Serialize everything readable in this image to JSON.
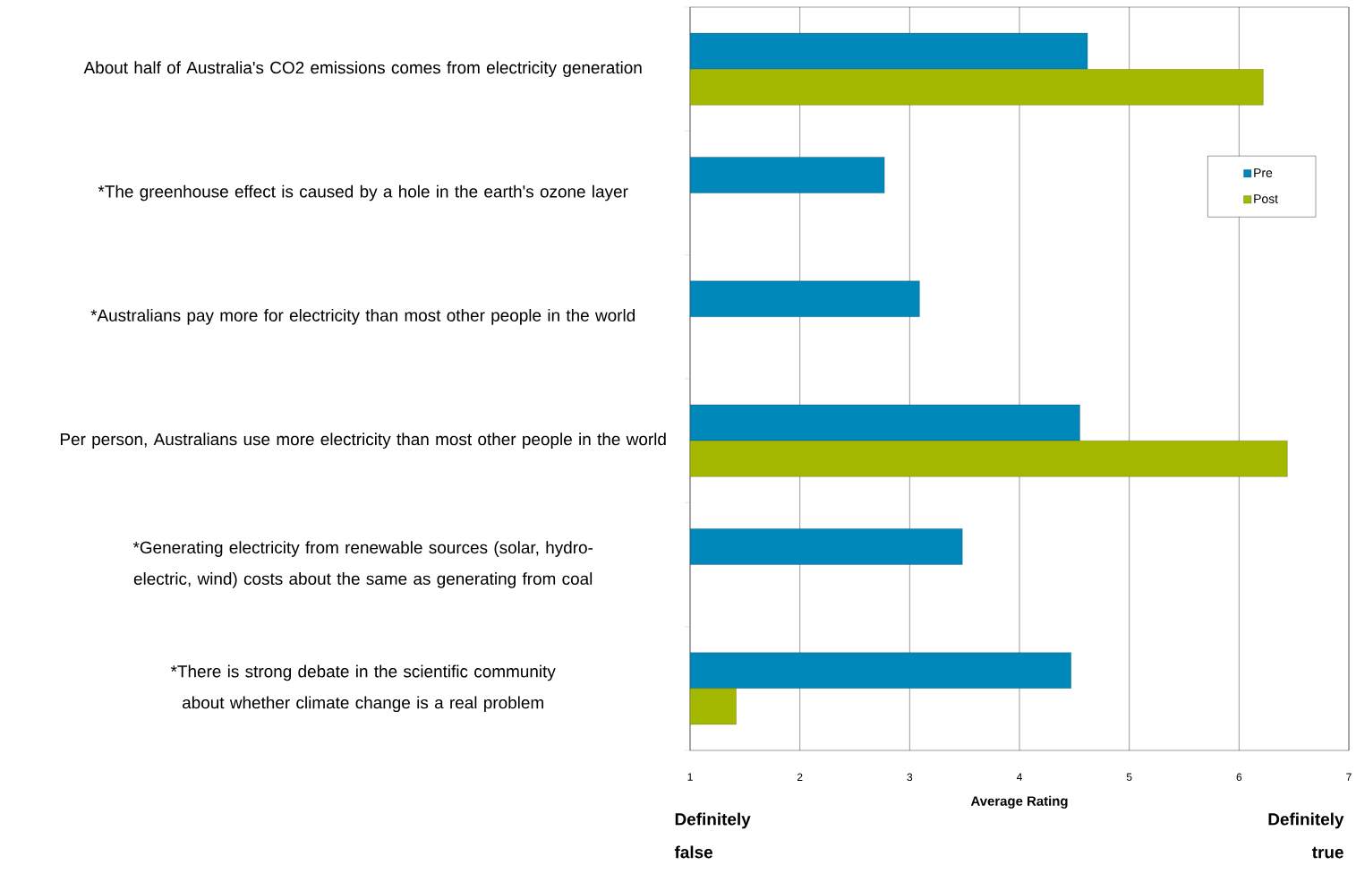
{
  "chart_data": {
    "type": "bar",
    "orientation": "horizontal",
    "xlabel": "Average Rating",
    "categories": [
      "About half of Australia's CO2 emissions comes from electricity generation",
      "*The greenhouse effect is caused by a hole in the earth's ozone layer",
      "*Australians pay more for electricity than most other people in the world",
      "Per person, Australians use more electricity than most other people in the world",
      "*Generating electricity from renewable sources (solar, hydro-electric, wind) costs about the same as generating from coal",
      "*There is strong debate in the scientific community about whether climate change is a real problem"
    ],
    "series": [
      {
        "name": "Pre",
        "color": "#0088bb",
        "values": [
          4.62,
          2.77,
          3.09,
          4.55,
          3.48,
          4.47
        ]
      },
      {
        "name": "Post",
        "color": "#a4b800",
        "values": [
          6.22,
          null,
          null,
          6.44,
          null,
          1.42
        ]
      }
    ],
    "xlim": [
      1,
      7
    ],
    "xticks": [
      1,
      2,
      3,
      4,
      5,
      6,
      7
    ],
    "grid": "x",
    "legend": "top right",
    "annotations": [
      "Definitely false",
      "Definitely true"
    ]
  }
}
